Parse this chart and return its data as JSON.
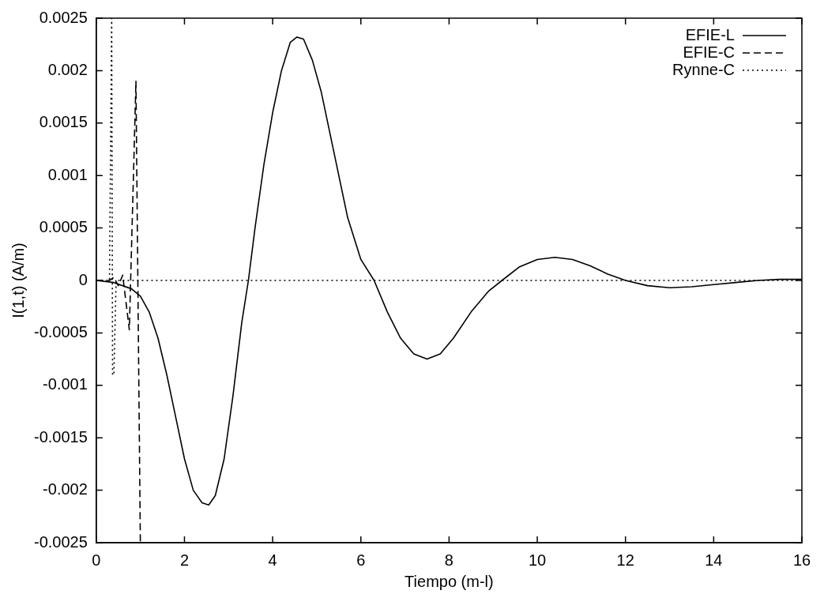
{
  "chart_data": {
    "type": "line",
    "xlabel": "Tiempo (m-l)",
    "ylabel": "I(1,t) (A/m)",
    "xlim": [
      0,
      16
    ],
    "xticks": [
      0,
      2,
      4,
      6,
      8,
      10,
      12,
      14,
      16
    ],
    "ylim": [
      -0.0025,
      0.0025
    ],
    "yticks": [
      -0.0025,
      -0.002,
      -0.0015,
      -0.001,
      -0.0005,
      0,
      0.0005,
      0.001,
      0.0015,
      0.002,
      0.0025
    ],
    "grid": false,
    "legend": "top right",
    "marker": "none",
    "series": [
      {
        "name": "EFIE-L",
        "color": "#000000",
        "line_style": "solid",
        "x": [
          0,
          0.4,
          0.8,
          1.0,
          1.2,
          1.4,
          1.6,
          1.8,
          2.0,
          2.2,
          2.4,
          2.55,
          2.7,
          2.9,
          3.1,
          3.3,
          3.45,
          3.6,
          3.8,
          4.0,
          4.2,
          4.4,
          4.55,
          4.7,
          4.9,
          5.1,
          5.4,
          5.7,
          6.0,
          6.3,
          6.6,
          6.9,
          7.2,
          7.5,
          7.8,
          8.1,
          8.5,
          8.9,
          9.2,
          9.6,
          10.0,
          10.4,
          10.8,
          11.2,
          11.6,
          12.0,
          12.5,
          13.0,
          13.5,
          14.0,
          14.5,
          15.0,
          15.5,
          16
        ],
        "values": [
          0,
          -2e-05,
          -8e-05,
          -0.00015,
          -0.0003,
          -0.00055,
          -0.0009,
          -0.0013,
          -0.0017,
          -0.002,
          -0.00212,
          -0.00214,
          -0.00205,
          -0.0017,
          -0.0011,
          -0.0004,
          0,
          0.0005,
          0.0011,
          0.0016,
          0.002,
          0.00227,
          0.00232,
          0.0023,
          0.0021,
          0.0018,
          0.0012,
          0.0006,
          0.0002,
          0,
          -0.0003,
          -0.00055,
          -0.0007,
          -0.00075,
          -0.0007,
          -0.00055,
          -0.0003,
          -0.0001,
          0,
          0.00013,
          0.0002,
          0.00022,
          0.0002,
          0.00014,
          6e-05,
          0,
          -5e-05,
          -7e-05,
          -6e-05,
          -4e-05,
          -2e-05,
          0,
          1e-05,
          1e-05
        ]
      },
      {
        "name": "EFIE-C",
        "color": "#000000",
        "line_style": "dashed",
        "x": [
          0,
          0.3,
          0.4,
          0.5,
          0.6,
          0.75,
          0.85,
          0.9,
          0.95,
          1.0
        ],
        "values": [
          0,
          0,
          3e-05,
          -5e-05,
          5e-05,
          -0.00047,
          0.0011,
          0.0019,
          -0.0003,
          -0.0025
        ]
      },
      {
        "name": "Rynne-C",
        "color": "#000000",
        "line_style": "dotted",
        "x": [
          0,
          0.3,
          0.35,
          0.37,
          0.4,
          0.45,
          1,
          16
        ],
        "values": [
          0,
          0,
          0.0025,
          -0.0009,
          -0.0009,
          0,
          0,
          0
        ]
      }
    ]
  }
}
